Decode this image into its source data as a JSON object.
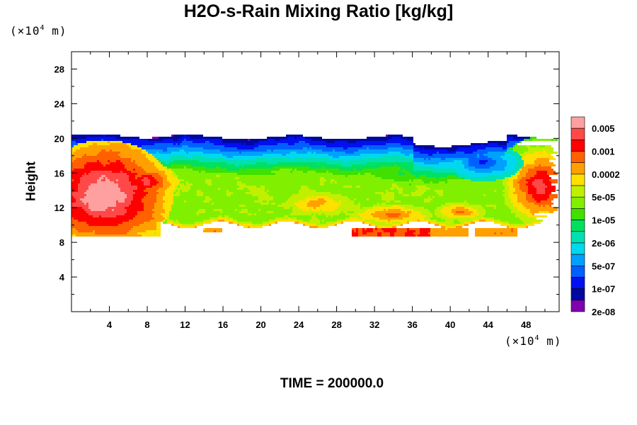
{
  "chart_data": {
    "type": "heatmap",
    "title": "H2O-s-Rain Mixing Ratio [kg/kg]",
    "ylabel": "Height",
    "x_unit": {
      "prefix": "(×10",
      "exp": "4",
      "suffix": " m)"
    },
    "y_unit": {
      "prefix": "(×10",
      "exp": "4",
      "suffix": " m)"
    },
    "xlim": [
      0,
      51.5
    ],
    "ylim": [
      0,
      30
    ],
    "x_ticks": [
      4,
      8,
      12,
      16,
      20,
      24,
      28,
      32,
      36,
      40,
      44,
      48
    ],
    "y_ticks": [
      4,
      8,
      12,
      16,
      20,
      24,
      28
    ],
    "footer": "TIME = 200000.0",
    "colorbar": {
      "colors": [
        "#ffa0a0",
        "#ff4848",
        "#ff0000",
        "#ff6000",
        "#ffa000",
        "#ffe000",
        "#c0f000",
        "#80f000",
        "#40e000",
        "#00e060",
        "#00e0b0",
        "#00d8f0",
        "#00a0ff",
        "#0060ff",
        "#0010f0",
        "#0008a0",
        "#8000b0"
      ],
      "labels": [
        "0.005",
        "0.001",
        "0.0002",
        "5e-05",
        "1e-05",
        "2e-06",
        "5e-07",
        "1e-07",
        "2e-08"
      ]
    },
    "field": {
      "description_levels": "cloud band between ~8.5 and ~20.5 (x10^4 m) height; highest values near x=0-10 and x=44-51",
      "band": {
        "x_start": 0,
        "x_end": 51.5,
        "top": 20.3,
        "bottom": 10.0
      },
      "regions": [
        {
          "x": 4,
          "y": 13.5,
          "level": 0.006
        },
        {
          "x": 7.5,
          "y": 15,
          "level": 0.001
        },
        {
          "x": 48.5,
          "y": 15.5,
          "level": 0.0005
        },
        {
          "x": 33.5,
          "y": 9,
          "level": 0.002
        },
        {
          "x": 24,
          "y": 13,
          "level": 1e-05
        },
        {
          "x": 36,
          "y": 17,
          "level": 2e-06
        },
        {
          "x": 44,
          "y": 17.5,
          "level": 2e-08
        }
      ]
    }
  }
}
